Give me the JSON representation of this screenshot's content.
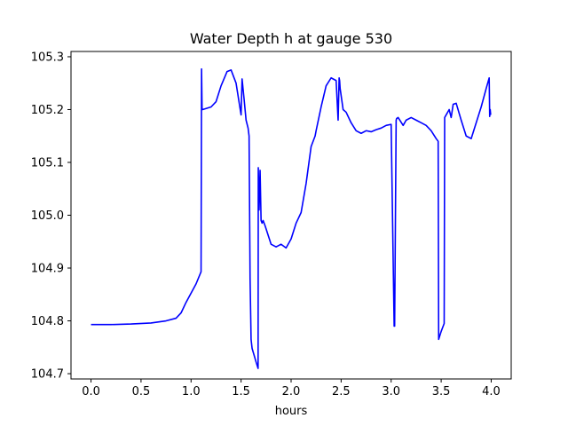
{
  "chart_data": {
    "type": "line",
    "title": "Water Depth h at gauge 530",
    "xlabel": "hours",
    "ylabel": "",
    "xlim": [
      -0.2,
      4.2
    ],
    "ylim": [
      104.69,
      105.31
    ],
    "xticks": [
      0.0,
      0.5,
      1.0,
      1.5,
      2.0,
      2.5,
      3.0,
      3.5,
      4.0
    ],
    "xtick_labels": [
      "0.0",
      "0.5",
      "1.0",
      "1.5",
      "2.0",
      "2.5",
      "3.0",
      "3.5",
      "4.0"
    ],
    "yticks": [
      104.7,
      104.8,
      104.9,
      105.0,
      105.1,
      105.2,
      105.3
    ],
    "ytick_labels": [
      "104.7",
      "104.8",
      "104.9",
      "105.0",
      "105.1",
      "105.2",
      "105.3"
    ],
    "grid": false,
    "series": [
      {
        "color": "#0000ff",
        "x": [
          0.0,
          0.2,
          0.4,
          0.6,
          0.75,
          0.85,
          0.9,
          0.95,
          1.05,
          1.1,
          1.105,
          1.11,
          1.115,
          1.2,
          1.25,
          1.3,
          1.36,
          1.4,
          1.45,
          1.5,
          1.51,
          1.53,
          1.55,
          1.57,
          1.58,
          1.59,
          1.6,
          1.61,
          1.65,
          1.67,
          1.672,
          1.68,
          1.69,
          1.7,
          1.71,
          1.72,
          1.74,
          1.8,
          1.85,
          1.9,
          1.95,
          2.0,
          2.05,
          2.1,
          2.15,
          2.2,
          2.24,
          2.25,
          2.3,
          2.35,
          2.4,
          2.45,
          2.47,
          2.48,
          2.485,
          2.49,
          2.52,
          2.55,
          2.6,
          2.65,
          2.7,
          2.75,
          2.8,
          2.85,
          2.9,
          2.95,
          3.0,
          3.03,
          3.035,
          3.05,
          3.055,
          3.07,
          3.12,
          3.15,
          3.2,
          3.25,
          3.3,
          3.35,
          3.4,
          3.45,
          3.47,
          3.475,
          3.5,
          3.53,
          3.535,
          3.55,
          3.58,
          3.6,
          3.62,
          3.65,
          3.7,
          3.75,
          3.8,
          3.85,
          3.9,
          3.95,
          3.98,
          3.985,
          3.99,
          3.995
        ],
        "y": [
          104.793,
          104.793,
          104.794,
          104.796,
          104.8,
          104.805,
          104.815,
          104.835,
          104.87,
          104.893,
          105.277,
          105.202,
          105.2,
          105.205,
          105.215,
          105.245,
          105.272,
          105.275,
          105.25,
          105.19,
          105.258,
          105.22,
          105.18,
          105.165,
          105.15,
          104.88,
          104.765,
          104.748,
          104.722,
          104.71,
          105.09,
          105.01,
          105.085,
          104.99,
          104.985,
          104.99,
          104.98,
          104.945,
          104.94,
          104.945,
          104.938,
          104.955,
          104.985,
          105.005,
          105.06,
          105.13,
          105.15,
          105.16,
          105.205,
          105.245,
          105.26,
          105.255,
          105.18,
          105.26,
          105.255,
          105.24,
          105.2,
          105.195,
          105.175,
          105.16,
          105.155,
          105.16,
          105.158,
          105.162,
          105.165,
          105.17,
          105.172,
          104.79,
          104.79,
          105.18,
          105.183,
          105.185,
          105.17,
          105.18,
          105.185,
          105.18,
          105.175,
          105.17,
          105.16,
          105.145,
          105.14,
          104.765,
          104.78,
          104.795,
          105.185,
          105.19,
          105.2,
          105.185,
          105.21,
          105.212,
          105.18,
          105.15,
          105.145,
          105.175,
          105.205,
          105.24,
          105.26,
          105.187,
          105.2,
          105.19
        ]
      }
    ]
  }
}
